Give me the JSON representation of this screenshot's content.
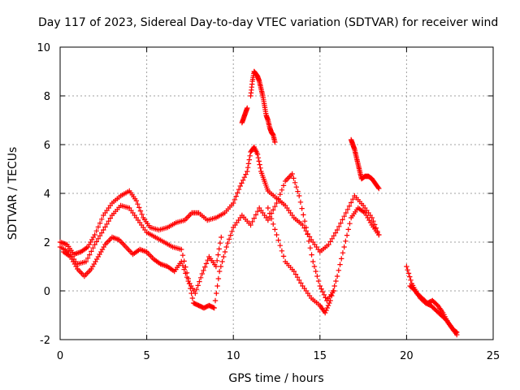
{
  "chart_data": {
    "type": "scatter",
    "title": "Day 117 of 2023, Sidereal Day-to-day VTEC variation (SDTVAR) for receiver wind",
    "xlabel": "GPS time / hours",
    "ylabel": "SDTVAR / TECUs",
    "xlim": [
      0,
      25
    ],
    "ylim": [
      -2,
      10
    ],
    "xticks": [
      0,
      5,
      10,
      15,
      20,
      25
    ],
    "yticks": [
      -2,
      0,
      2,
      4,
      6,
      8,
      10
    ],
    "grid": true,
    "marker": "plus",
    "color": "#ff0000",
    "segments": [
      {
        "name": "track-a",
        "x": [
          0.0,
          0.4,
          0.8,
          1.2,
          1.6,
          2.0,
          2.5,
          3.0,
          3.5,
          4.0,
          4.4,
          4.8,
          5.2,
          5.7,
          6.2,
          6.7,
          7.2,
          7.6,
          8.0,
          8.5,
          9.0,
          9.5,
          10.0,
          10.4,
          10.8,
          11.0,
          11.2,
          11.4,
          11.6,
          11.8,
          12.0,
          12.5,
          13.0,
          13.5,
          14.0,
          14.5,
          15.0,
          15.5,
          16.0,
          16.5,
          17.0,
          17.5,
          18.0,
          18.4
        ],
        "y": [
          2.0,
          1.9,
          1.5,
          1.6,
          1.8,
          2.3,
          3.1,
          3.6,
          3.9,
          4.1,
          3.7,
          3.0,
          2.6,
          2.5,
          2.6,
          2.8,
          2.9,
          3.2,
          3.2,
          2.9,
          3.0,
          3.2,
          3.6,
          4.3,
          4.9,
          5.7,
          5.9,
          5.6,
          4.9,
          4.5,
          4.1,
          3.8,
          3.5,
          3.0,
          2.7,
          2.1,
          1.6,
          1.9,
          2.5,
          3.2,
          3.9,
          3.5,
          3.0,
          2.3
        ]
      },
      {
        "name": "track-b",
        "x": [
          0.0,
          0.5,
          1.0,
          1.5,
          2.0,
          2.5,
          3.0,
          3.5,
          4.0,
          4.5,
          5.0,
          5.5,
          6.0,
          6.5,
          7.0,
          7.4,
          7.7,
          8.0,
          8.3,
          8.6,
          8.9,
          9.2,
          9.6,
          10.0,
          10.5,
          11.0,
          11.5,
          12.0,
          12.5,
          13.0,
          13.4,
          13.8,
          14.2,
          14.6,
          15.0,
          15.4,
          15.8
        ],
        "y": [
          1.8,
          1.6,
          1.1,
          1.2,
          1.9,
          2.5,
          3.1,
          3.5,
          3.4,
          2.9,
          2.4,
          2.2,
          2.0,
          1.8,
          1.7,
          0.5,
          -0.5,
          -0.6,
          -0.7,
          -0.6,
          -0.7,
          0.8,
          1.8,
          2.6,
          3.1,
          2.7,
          3.4,
          2.9,
          3.6,
          4.5,
          4.8,
          3.9,
          2.6,
          1.2,
          0.2,
          -0.4,
          0.0
        ]
      },
      {
        "name": "track-c",
        "x": [
          0.2,
          0.6,
          1.0,
          1.4,
          1.8,
          2.2,
          2.6,
          3.0,
          3.4,
          3.8,
          4.2,
          4.6,
          5.0,
          5.4,
          5.8,
          6.2,
          6.6,
          7.0,
          7.4,
          7.8,
          8.2,
          8.6,
          9.0,
          9.3
        ],
        "y": [
          1.6,
          1.4,
          0.9,
          0.6,
          0.9,
          1.4,
          1.9,
          2.2,
          2.1,
          1.8,
          1.5,
          1.7,
          1.6,
          1.3,
          1.1,
          1.0,
          0.8,
          1.2,
          0.4,
          -0.1,
          0.7,
          1.4,
          1.0,
          2.2
        ]
      },
      {
        "name": "track-d",
        "x": [
          12.0,
          12.5,
          13.0,
          13.5,
          14.0,
          14.5,
          15.0,
          15.3,
          15.6,
          16.0,
          16.4,
          16.8,
          17.2,
          17.6,
          18.0,
          18.4
        ],
        "y": [
          3.4,
          2.3,
          1.2,
          0.8,
          0.2,
          -0.3,
          -0.6,
          -0.9,
          -0.4,
          0.6,
          1.8,
          3.0,
          3.4,
          3.2,
          2.7,
          2.3
        ]
      },
      {
        "name": "track-e",
        "x": [
          11.0,
          11.1,
          11.2,
          11.3,
          11.4,
          11.5,
          11.6,
          11.7,
          11.8,
          11.9,
          12.0,
          12.1,
          12.2,
          12.3,
          12.4
        ],
        "y": [
          8.0,
          8.6,
          9.0,
          8.9,
          8.8,
          8.6,
          8.3,
          8.0,
          7.6,
          7.2,
          7.0,
          6.7,
          6.5,
          6.4,
          6.1
        ]
      },
      {
        "name": "track-f",
        "x": [
          10.5,
          10.6,
          10.7,
          10.8
        ],
        "y": [
          6.9,
          7.1,
          7.3,
          7.5
        ]
      },
      {
        "name": "track-g",
        "x": [
          16.8,
          16.9,
          17.0,
          17.1,
          17.2,
          17.3,
          17.4,
          17.6,
          17.8,
          18.0,
          18.2,
          18.4
        ],
        "y": [
          6.2,
          6.0,
          5.8,
          5.5,
          5.2,
          4.9,
          4.6,
          4.7,
          4.7,
          4.6,
          4.4,
          4.2
        ]
      },
      {
        "name": "track-h",
        "x": [
          20.0,
          20.3,
          20.6,
          20.9,
          21.2,
          21.5,
          21.8,
          22.1,
          22.4,
          22.7,
          22.9
        ],
        "y": [
          1.0,
          0.3,
          -0.1,
          -0.3,
          -0.5,
          -0.4,
          -0.6,
          -0.9,
          -1.3,
          -1.6,
          -1.7
        ]
      },
      {
        "name": "track-i",
        "x": [
          20.2,
          20.5,
          20.8,
          21.1,
          21.4,
          21.7,
          22.0,
          22.3,
          22.6,
          22.9
        ],
        "y": [
          0.2,
          0.0,
          -0.3,
          -0.5,
          -0.6,
          -0.8,
          -1.0,
          -1.2,
          -1.5,
          -1.8
        ]
      }
    ]
  }
}
